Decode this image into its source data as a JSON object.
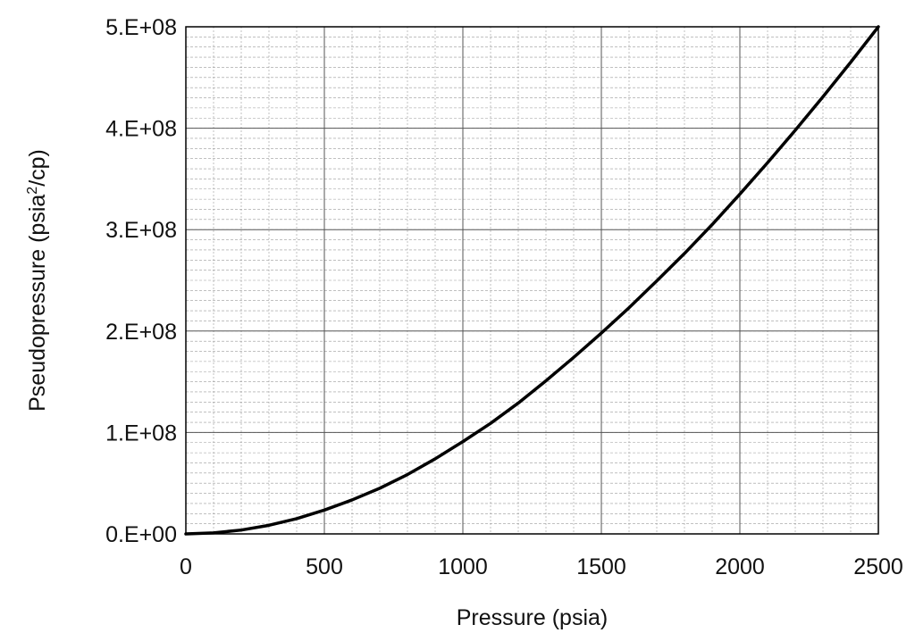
{
  "chart_data": {
    "type": "line",
    "title": "",
    "xlabel": "Pressure (psia)",
    "ylabel": {
      "main": "Pseudopressure (psia",
      "sup": "2",
      "tail": "/cp)"
    },
    "xlim": [
      0,
      2500
    ],
    "ylim": [
      0,
      500000000
    ],
    "x_ticks": [
      0,
      500,
      1000,
      1500,
      2000,
      2500
    ],
    "x_tick_labels": [
      "0",
      "500",
      "1000",
      "1500",
      "2000",
      "2500"
    ],
    "y_ticks": [
      0,
      100000000,
      200000000,
      300000000,
      400000000,
      500000000
    ],
    "y_tick_labels": [
      "0.E+00",
      "1.E+08",
      "2.E+08",
      "3.E+08",
      "4.E+08",
      "5.E+08"
    ],
    "grid": {
      "major": true,
      "minor": true,
      "minor_x_step": 100,
      "minor_y_step": 10000000
    },
    "series": [
      {
        "x": [
          0,
          100,
          200,
          300,
          400,
          500,
          600,
          700,
          800,
          900,
          1000,
          1100,
          1200,
          1300,
          1400,
          1500,
          1600,
          1700,
          1800,
          1900,
          2000,
          2100,
          2200,
          2300,
          2400,
          2500
        ],
        "y": [
          0,
          1000000,
          3800000,
          8500000,
          15000000,
          23500000,
          33500000,
          45000000,
          58500000,
          74000000,
          91000000,
          109000000,
          129000000,
          151000000,
          174000000,
          198000000,
          223000000,
          249500000,
          276500000,
          305000000,
          335000000,
          366000000,
          398000000,
          431000000,
          465000000,
          500000000
        ]
      }
    ]
  },
  "colors": {
    "line": "#000000",
    "major_grid": "#555555",
    "minor_grid": "#9a9a9a",
    "axis": "#000000"
  }
}
